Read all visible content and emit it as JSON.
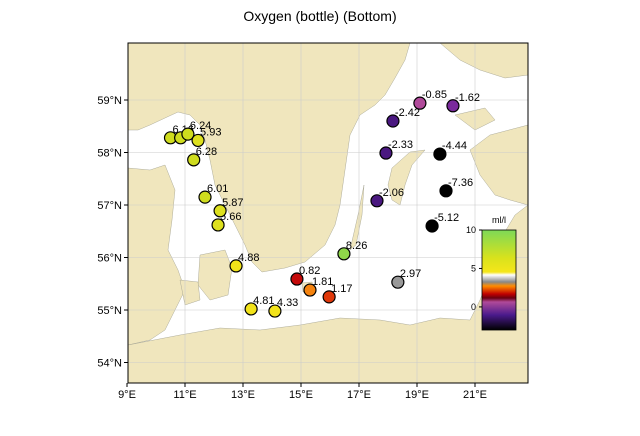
{
  "title": "Oxygen (bottle) (Bottom)",
  "colors": {
    "land": "#f0e6bd",
    "sea": "#ffffff",
    "grid": "#cccccc"
  },
  "chart_data": {
    "type": "scatter",
    "title": "Oxygen (bottle) (Bottom)",
    "x_ticks": [
      "9°E",
      "11°E",
      "13°E",
      "15°E",
      "17°E",
      "19°E",
      "21°E"
    ],
    "x_tick_values": [
      9,
      11,
      13,
      15,
      17,
      19,
      21
    ],
    "y_ticks": [
      "54°N",
      "55°N",
      "56°N",
      "57°N",
      "58°N",
      "59°N"
    ],
    "y_tick_values": [
      54,
      55,
      56,
      57,
      58,
      59
    ],
    "xlim": [
      9,
      22.8
    ],
    "ylim": [
      53.5,
      60.2
    ],
    "colorbar": {
      "label": "ml/l",
      "ticks": [
        "10",
        "5",
        "0"
      ],
      "tick_values": [
        10,
        5,
        0
      ],
      "range": [
        -3,
        10
      ]
    },
    "points": [
      {
        "lon": 10.5,
        "lat": 58.28,
        "value": 6.16,
        "label": "6.16"
      },
      {
        "lon": 10.85,
        "lat": 58.28,
        "value": 6.2,
        "label": null
      },
      {
        "lon": 11.1,
        "lat": 58.35,
        "value": 6.24,
        "label": "6.24"
      },
      {
        "lon": 11.45,
        "lat": 58.23,
        "value": 5.93,
        "label": "5.93"
      },
      {
        "lon": 11.3,
        "lat": 57.86,
        "value": 6.28,
        "label": "6.28"
      },
      {
        "lon": 11.69,
        "lat": 57.15,
        "value": 6.01,
        "label": "6.01"
      },
      {
        "lon": 12.21,
        "lat": 56.89,
        "value": 5.87,
        "label": "5.87"
      },
      {
        "lon": 12.14,
        "lat": 56.62,
        "value": 5.66,
        "label": "5.66"
      },
      {
        "lon": 12.76,
        "lat": 55.84,
        "value": 4.88,
        "label": "4.88"
      },
      {
        "lon": 13.28,
        "lat": 55.02,
        "value": 4.81,
        "label": "4.81"
      },
      {
        "lon": 14.1,
        "lat": 54.98,
        "value": 4.33,
        "label": "4.33"
      },
      {
        "lon": 14.86,
        "lat": 55.59,
        "value": 0.82,
        "label": "0.82"
      },
      {
        "lon": 15.31,
        "lat": 55.38,
        "value": 1.81,
        "label": "1.81"
      },
      {
        "lon": 15.97,
        "lat": 55.25,
        "value": 1.17,
        "label": "1.17"
      },
      {
        "lon": 16.48,
        "lat": 56.07,
        "value": 8.26,
        "label": "8.26"
      },
      {
        "lon": 18.34,
        "lat": 55.53,
        "value": 2.97,
        "label": "2.97"
      },
      {
        "lon": 17.62,
        "lat": 57.08,
        "value": -2.06,
        "label": "-2.06"
      },
      {
        "lon": 17.93,
        "lat": 57.99,
        "value": -2.33,
        "label": "-2.33"
      },
      {
        "lon": 18.17,
        "lat": 58.6,
        "value": -2.42,
        "label": "-2.42"
      },
      {
        "lon": 19.1,
        "lat": 58.94,
        "value": -0.85,
        "label": "-0.85"
      },
      {
        "lon": 20.24,
        "lat": 58.89,
        "value": -1.62,
        "label": "-1.62"
      },
      {
        "lon": 19.79,
        "lat": 57.97,
        "value": -4.44,
        "label": "-4.44"
      },
      {
        "lon": 20.0,
        "lat": 57.27,
        "value": -7.36,
        "label": "-7.36"
      },
      {
        "lon": 19.52,
        "lat": 56.6,
        "value": -5.12,
        "label": "-5.12"
      }
    ]
  }
}
